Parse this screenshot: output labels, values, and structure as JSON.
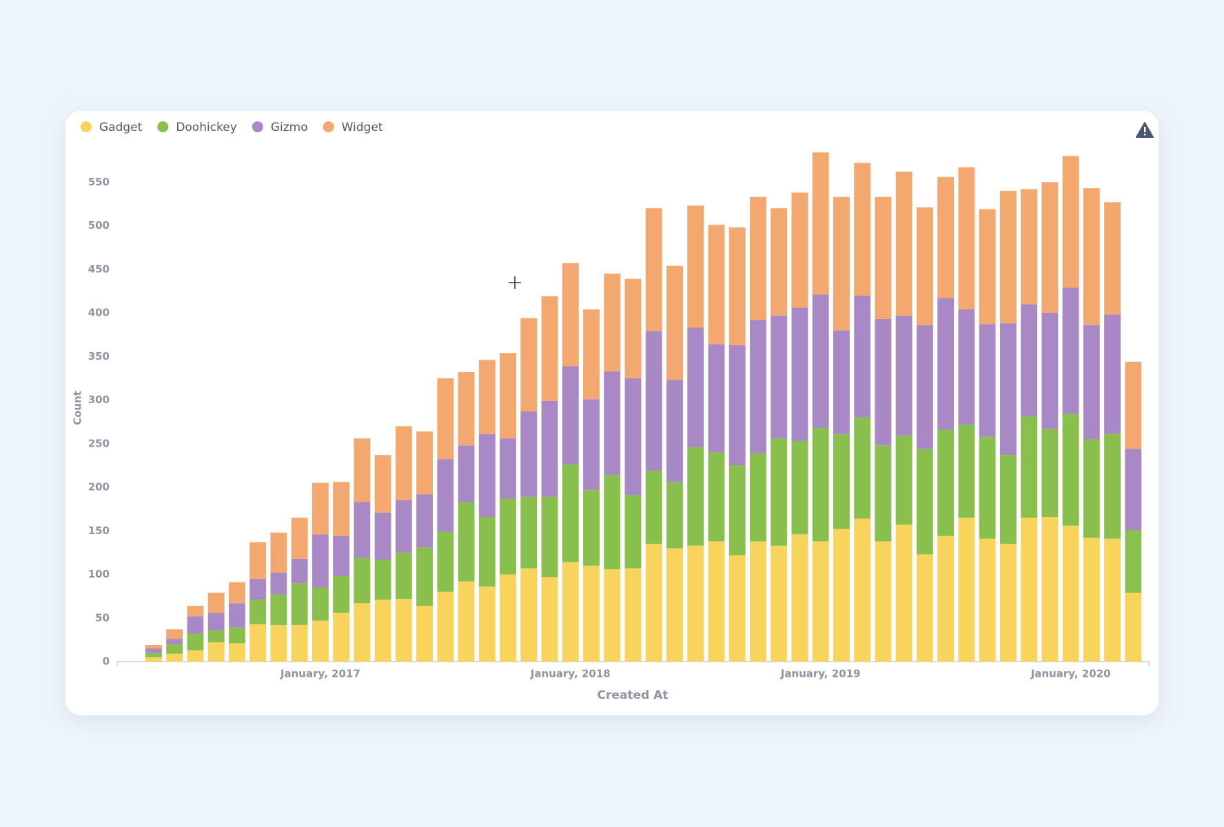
{
  "chart_data": {
    "type": "bar",
    "stacked": true,
    "x_label": "Created At",
    "y_label": "Count",
    "categories": [
      null,
      null,
      null,
      null,
      null,
      null,
      null,
      null,
      "January, 2017",
      null,
      null,
      null,
      null,
      null,
      null,
      null,
      null,
      null,
      null,
      null,
      "January, 2018",
      null,
      null,
      null,
      null,
      null,
      null,
      null,
      null,
      null,
      null,
      null,
      "January, 2019",
      null,
      null,
      null,
      null,
      null,
      null,
      null,
      null,
      null,
      null,
      null,
      "January, 2020",
      null,
      null,
      null
    ],
    "series": [
      {
        "name": "Gadget",
        "color": "#F9D45C",
        "values": [
          5,
          9,
          13,
          22,
          21,
          43,
          42,
          42,
          47,
          56,
          67,
          71,
          72,
          64,
          80,
          92,
          86,
          100,
          107,
          97,
          114,
          110,
          106,
          107,
          135,
          130,
          133,
          138,
          122,
          138,
          133,
          146,
          138,
          152,
          164,
          138,
          157,
          123,
          144,
          165,
          141,
          135,
          165,
          166,
          156,
          142,
          141,
          79
        ]
      },
      {
        "name": "Doohickey",
        "color": "#88BF4D",
        "values": [
          5,
          11,
          19,
          14,
          18,
          28,
          35,
          48,
          38,
          42,
          52,
          46,
          53,
          67,
          69,
          91,
          80,
          87,
          82,
          92,
          112,
          87,
          108,
          84,
          84,
          76,
          113,
          102,
          103,
          101,
          123,
          107,
          130,
          109,
          116,
          110,
          102,
          121,
          122,
          107,
          117,
          102,
          116,
          101,
          128,
          113,
          120,
          72
        ]
      },
      {
        "name": "Gizmo",
        "color": "#A989C5",
        "values": [
          5,
          6,
          20,
          20,
          28,
          24,
          25,
          28,
          61,
          46,
          64,
          54,
          60,
          61,
          83,
          65,
          95,
          69,
          98,
          110,
          113,
          104,
          119,
          134,
          160,
          117,
          137,
          124,
          138,
          153,
          141,
          153,
          153,
          119,
          140,
          145,
          138,
          142,
          151,
          132,
          129,
          151,
          129,
          133,
          145,
          131,
          137,
          93
        ]
      },
      {
        "name": "Widget",
        "color": "#F2A86F",
        "values": [
          4,
          11,
          12,
          23,
          24,
          42,
          46,
          47,
          59,
          62,
          73,
          66,
          85,
          72,
          93,
          84,
          85,
          98,
          107,
          120,
          118,
          103,
          112,
          114,
          141,
          131,
          140,
          137,
          135,
          141,
          123,
          132,
          163,
          153,
          152,
          140,
          165,
          135,
          139,
          163,
          132,
          152,
          132,
          150,
          151,
          157,
          129,
          100
        ]
      }
    ],
    "ylim": [
      0,
      600
    ],
    "yticks": [
      0,
      50,
      100,
      150,
      200,
      250,
      300,
      350,
      400,
      450,
      500,
      550
    ],
    "grid": false,
    "legend": "top-left"
  }
}
